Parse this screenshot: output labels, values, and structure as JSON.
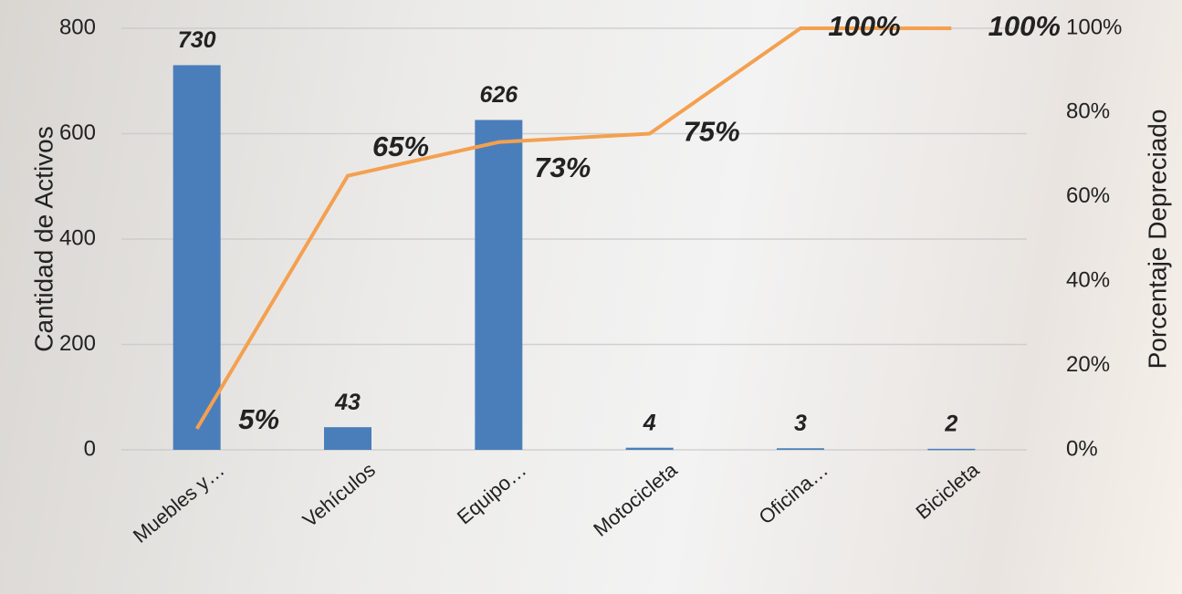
{
  "chart_data": {
    "type": "bar",
    "categories": [
      "Muebles y…",
      "Vehículos",
      "Equipo…",
      "Motocicleta",
      "Oficina…",
      "Bicicleta"
    ],
    "series": [
      {
        "type": "bar",
        "color": "#4a7ebb",
        "values": [
          730,
          43,
          626,
          4,
          3,
          2
        ]
      },
      {
        "type": "line",
        "axis": "y2",
        "color": "#f4a04f",
        "values": [
          5,
          65,
          73,
          75,
          100,
          100
        ],
        "value_labels": [
          "5%",
          "65%",
          "73%",
          "75%",
          "100%",
          "100%"
        ]
      }
    ],
    "y_label": "Cantidad de Activos",
    "y2_label": "Porcentaje Depreciado",
    "ylim": [
      0,
      800
    ],
    "yticks": [
      0,
      200,
      400,
      600,
      800
    ],
    "y2lim": [
      0,
      100
    ],
    "y2ticks": [
      {
        "value": 0,
        "label": "0%"
      },
      {
        "value": 20,
        "label": "20%"
      },
      {
        "value": 40,
        "label": "40%"
      },
      {
        "value": 60,
        "label": "60%"
      },
      {
        "value": 80,
        "label": "80%"
      },
      {
        "value": 100,
        "label": "100%"
      }
    ],
    "grid": true
  }
}
